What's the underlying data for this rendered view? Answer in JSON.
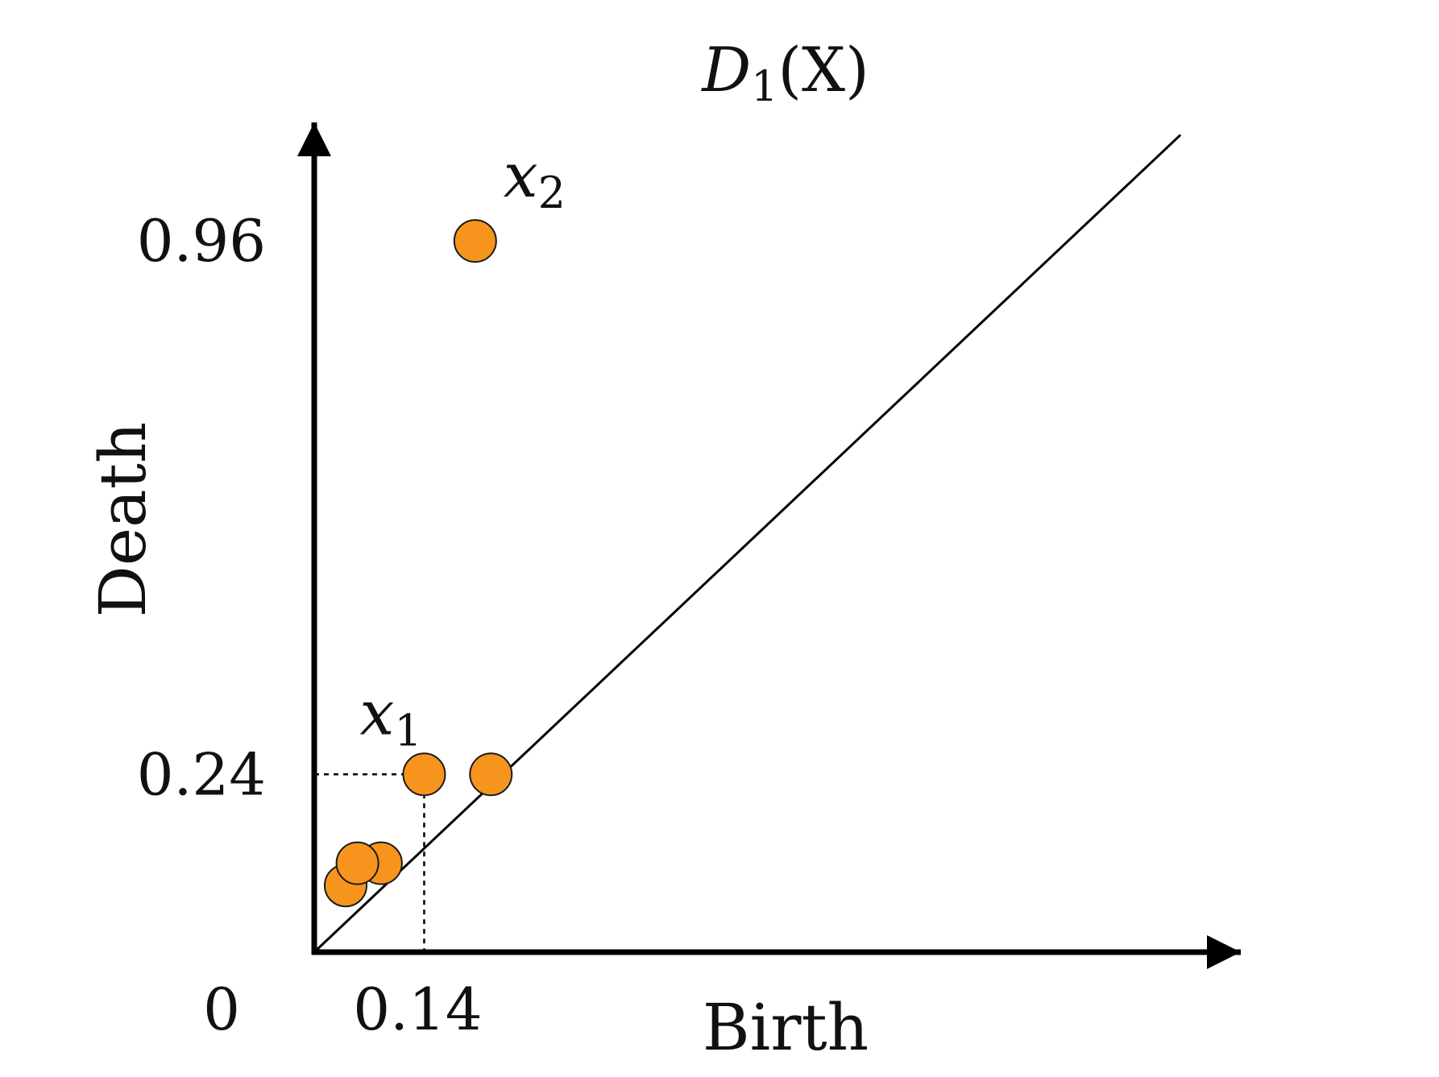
{
  "chart_data": {
    "type": "scatter",
    "title": {
      "main": "D",
      "sub": "1",
      "tail": "(X)"
    },
    "xlabel": "Birth",
    "ylabel": "Death",
    "xlim": [
      0,
      1.18
    ],
    "ylim": [
      0,
      1.12
    ],
    "x_ticks": [
      {
        "value": 0.14,
        "label": "0.14"
      }
    ],
    "y_ticks": [
      {
        "value": 0.96,
        "label": "0.96"
      },
      {
        "value": 0.24,
        "label": "0.24"
      }
    ],
    "origin_label": "0",
    "diagonal": true,
    "grid": false,
    "point_color": "#f7941d",
    "points": [
      {
        "x": 0.04,
        "y": 0.09
      },
      {
        "x": 0.085,
        "y": 0.12
      },
      {
        "x": 0.055,
        "y": 0.12
      },
      {
        "x": 0.14,
        "y": 0.24,
        "label_main": "x",
        "label_sub": "1"
      },
      {
        "x": 0.225,
        "y": 0.24
      },
      {
        "x": 0.205,
        "y": 0.96,
        "label_main": "x",
        "label_sub": "2"
      }
    ],
    "guide_point": {
      "x": 0.14,
      "y": 0.24
    }
  }
}
